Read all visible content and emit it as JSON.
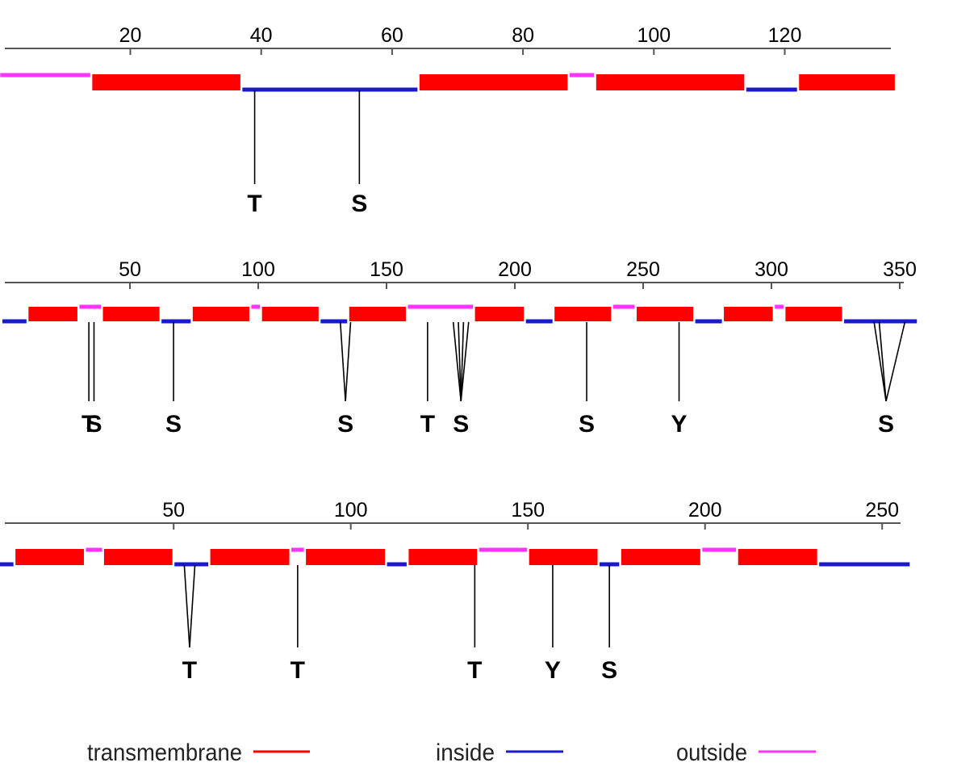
{
  "colors": {
    "transmembrane": "#ff0000",
    "inside": "#1a1acc",
    "outside": "#ff33ff",
    "axis": "#555555",
    "line": "#000000"
  },
  "tracks": [
    {
      "name": "track-1",
      "ticks": [
        20,
        40,
        60,
        80,
        100,
        120
      ],
      "segments": [
        {
          "type": "outside",
          "start": 1,
          "end": 14
        },
        {
          "type": "transmembrane",
          "start": 15,
          "end": 37
        },
        {
          "type": "inside",
          "start": 38,
          "end": 64
        },
        {
          "type": "transmembrane",
          "start": 65,
          "end": 87
        },
        {
          "type": "outside",
          "start": 88,
          "end": 91
        },
        {
          "type": "transmembrane",
          "start": 92,
          "end": 114
        },
        {
          "type": "inside",
          "start": 115,
          "end": 122
        },
        {
          "type": "transmembrane",
          "start": 123,
          "end": 137
        }
      ],
      "sites": [
        {
          "label": "T",
          "positions": [
            39
          ]
        },
        {
          "label": "S",
          "positions": [
            55
          ]
        }
      ]
    },
    {
      "name": "track-2",
      "ticks": [
        50,
        100,
        150,
        200,
        250,
        300,
        350
      ],
      "segments": [
        {
          "type": "inside",
          "start": 1,
          "end": 10
        },
        {
          "type": "transmembrane",
          "start": 11,
          "end": 30
        },
        {
          "type": "outside",
          "start": 31,
          "end": 39
        },
        {
          "type": "transmembrane",
          "start": 40,
          "end": 62
        },
        {
          "type": "inside",
          "start": 63,
          "end": 74
        },
        {
          "type": "transmembrane",
          "start": 75,
          "end": 97
        },
        {
          "type": "outside",
          "start": 98,
          "end": 101
        },
        {
          "type": "transmembrane",
          "start": 102,
          "end": 124
        },
        {
          "type": "inside",
          "start": 125,
          "end": 135
        },
        {
          "type": "transmembrane",
          "start": 136,
          "end": 158
        },
        {
          "type": "outside",
          "start": 159,
          "end": 184
        },
        {
          "type": "transmembrane",
          "start": 185,
          "end": 204
        },
        {
          "type": "inside",
          "start": 205,
          "end": 215
        },
        {
          "type": "transmembrane",
          "start": 216,
          "end": 238
        },
        {
          "type": "outside",
          "start": 239,
          "end": 247
        },
        {
          "type": "transmembrane",
          "start": 248,
          "end": 270
        },
        {
          "type": "inside",
          "start": 271,
          "end": 281
        },
        {
          "type": "transmembrane",
          "start": 282,
          "end": 301
        },
        {
          "type": "outside",
          "start": 302,
          "end": 305
        },
        {
          "type": "transmembrane",
          "start": 306,
          "end": 328
        },
        {
          "type": "inside",
          "start": 329,
          "end": 357
        }
      ],
      "sites": [
        {
          "label": "T",
          "positions": [
            34
          ]
        },
        {
          "label": "S",
          "positions": [
            36
          ]
        },
        {
          "label": "S",
          "positions": [
            67
          ]
        },
        {
          "label": "S",
          "positions": [
            132,
            136
          ]
        },
        {
          "label": "T",
          "positions": [
            166
          ]
        },
        {
          "label": "S",
          "positions": [
            176,
            178,
            180,
            182
          ]
        },
        {
          "label": "S",
          "positions": [
            228
          ]
        },
        {
          "label": "Y",
          "positions": [
            264
          ]
        },
        {
          "label": "S",
          "positions": [
            340,
            342,
            352
          ]
        }
      ]
    },
    {
      "name": "track-3",
      "ticks": [
        50,
        100,
        150,
        200,
        250
      ],
      "segments": [
        {
          "type": "inside",
          "start": 1,
          "end": 5
        },
        {
          "type": "transmembrane",
          "start": 6,
          "end": 25
        },
        {
          "type": "outside",
          "start": 26,
          "end": 30
        },
        {
          "type": "transmembrane",
          "start": 31,
          "end": 50
        },
        {
          "type": "inside",
          "start": 51,
          "end": 60
        },
        {
          "type": "transmembrane",
          "start": 61,
          "end": 83
        },
        {
          "type": "outside",
          "start": 84,
          "end": 87
        },
        {
          "type": "transmembrane",
          "start": 88,
          "end": 110
        },
        {
          "type": "inside",
          "start": 111,
          "end": 116
        },
        {
          "type": "transmembrane",
          "start": 117,
          "end": 136
        },
        {
          "type": "outside",
          "start": 137,
          "end": 150
        },
        {
          "type": "transmembrane",
          "start": 151,
          "end": 170
        },
        {
          "type": "inside",
          "start": 171,
          "end": 176
        },
        {
          "type": "transmembrane",
          "start": 177,
          "end": 199
        },
        {
          "type": "outside",
          "start": 200,
          "end": 209
        },
        {
          "type": "transmembrane",
          "start": 210,
          "end": 232
        },
        {
          "type": "inside",
          "start": 233,
          "end": 258
        }
      ],
      "sites": [
        {
          "label": "T",
          "positions": [
            53,
            56
          ]
        },
        {
          "label": "T",
          "positions": [
            85
          ]
        },
        {
          "label": "T",
          "positions": [
            135
          ]
        },
        {
          "label": "Y",
          "positions": [
            157
          ]
        },
        {
          "label": "S",
          "positions": [
            173
          ]
        }
      ]
    }
  ],
  "legend": [
    {
      "label": "transmembrane",
      "type": "transmembrane"
    },
    {
      "label": "inside",
      "type": "inside"
    },
    {
      "label": "outside",
      "type": "outside"
    }
  ]
}
